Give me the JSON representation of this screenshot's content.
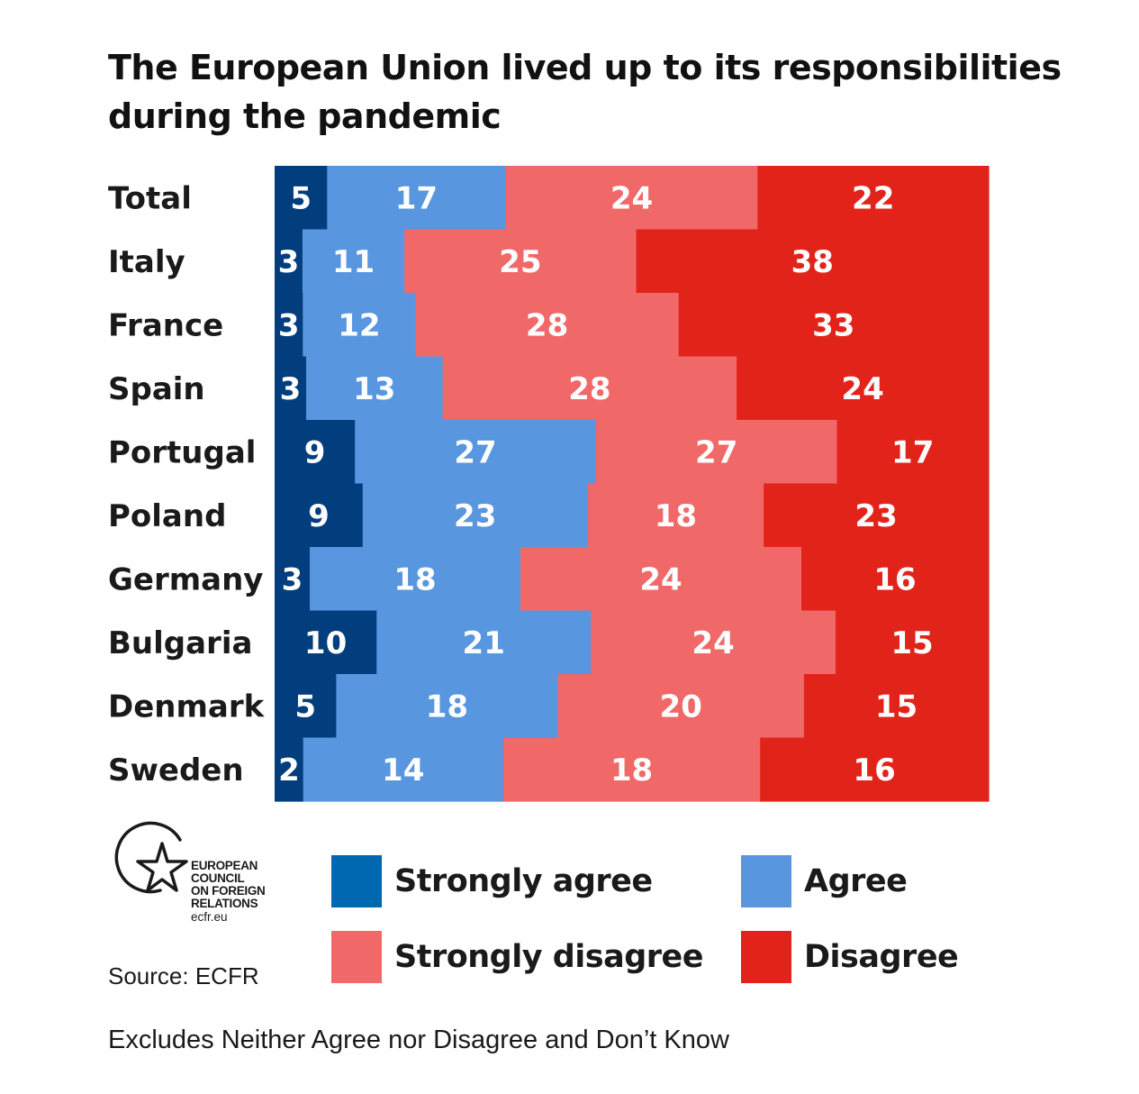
{
  "chart_data": {
    "type": "bar",
    "orientation": "horizontal",
    "stacked": true,
    "title": "The European Union lived up to its responsibilities during the pandemic",
    "categories": [
      "Total",
      "Italy",
      "France",
      "Spain",
      "Portugal",
      "Poland",
      "Germany",
      "Bulgaria",
      "Denmark",
      "Sweden"
    ],
    "series": [
      {
        "name": "Strongly agree",
        "color": "#023d7e",
        "values": [
          5,
          3,
          3,
          3,
          9,
          9,
          3,
          10,
          5,
          2
        ]
      },
      {
        "name": "Agree",
        "color": "#5896e0",
        "values": [
          17,
          11,
          12,
          13,
          27,
          23,
          18,
          21,
          18,
          14
        ]
      },
      {
        "name": "Strongly disagree",
        "color": "#f06868",
        "values": [
          24,
          25,
          28,
          28,
          27,
          18,
          24,
          24,
          20,
          18
        ]
      },
      {
        "name": "Disagree",
        "color": "#e2231a",
        "values": [
          22,
          38,
          33,
          24,
          17,
          23,
          16,
          15,
          15,
          16
        ]
      }
    ],
    "grid": false,
    "legend_position": "bottom"
  },
  "legend": {
    "items": [
      {
        "label": "Strongly agree",
        "color": "#0068b0"
      },
      {
        "label": "Agree",
        "color": "#5896e0"
      },
      {
        "label": "Strongly disagree",
        "color": "#f06868"
      },
      {
        "label": "Disagree",
        "color": "#e2231a"
      }
    ]
  },
  "logo": {
    "lines": [
      "EUROPEAN",
      "COUNCIL",
      "ON FOREIGN",
      "RELATIONS"
    ],
    "url": "ecfr.eu",
    "icon": "star-circle-icon"
  },
  "source": "Source: ECFR",
  "footnote": "Excludes Neither Agree nor Disagree and Don’t Know"
}
